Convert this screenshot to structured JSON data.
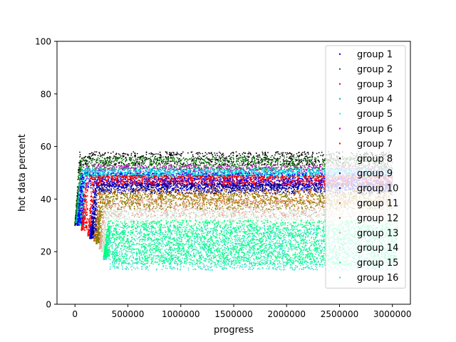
{
  "chart_data": {
    "type": "scatter",
    "title": "",
    "xlabel": "progress",
    "ylabel": "hot data percent",
    "xlim": [
      -170000,
      3170000
    ],
    "ylim": [
      0,
      100
    ],
    "xticks": [
      0,
      500000,
      1000000,
      1500000,
      2000000,
      2500000,
      3000000
    ],
    "xtick_labels": [
      "0",
      "500000",
      "1000000",
      "1500000",
      "2000000",
      "2500000",
      "3000000"
    ],
    "yticks": [
      0,
      20,
      40,
      60,
      80,
      100
    ],
    "ytick_labels": [
      "0",
      "20",
      "40",
      "60",
      "80",
      "100"
    ],
    "grid": false,
    "legend_position": "upper-right",
    "series": [
      {
        "name": "group 1",
        "color": "#0000ff",
        "x_start": 20000,
        "x_end": 3000000,
        "y_start": 30,
        "y_low": 44,
        "y_high": 50
      },
      {
        "name": "group 2",
        "color": "#008000",
        "x_start": 0,
        "x_end": 3000000,
        "y_start": 31,
        "y_low": 51,
        "y_high": 56
      },
      {
        "name": "group 3",
        "color": "#ff0000",
        "x_start": 60000,
        "x_end": 3000000,
        "y_start": 28,
        "y_low": 45,
        "y_high": 49
      },
      {
        "name": "group 4",
        "color": "#00bfbf",
        "x_start": 10000,
        "x_end": 3000000,
        "y_start": 31,
        "y_low": 48,
        "y_high": 52
      },
      {
        "name": "group 5",
        "color": "#00ffff",
        "x_start": 40000,
        "x_end": 3000000,
        "y_start": 30,
        "y_low": 48,
        "y_high": 51
      },
      {
        "name": "group 6",
        "color": "#bf00bf",
        "x_start": 30000,
        "x_end": 3000000,
        "y_start": 30,
        "y_low": 49,
        "y_high": 53
      },
      {
        "name": "group 7",
        "color": "#ff0000",
        "x_start": 120000,
        "x_end": 3000000,
        "y_start": 26,
        "y_low": 45,
        "y_high": 49
      },
      {
        "name": "group 8",
        "color": "#000000",
        "x_start": 0,
        "x_end": 3000000,
        "y_start": 30,
        "y_low": 53,
        "y_high": 58
      },
      {
        "name": "group 9",
        "color": "#0000ff",
        "x_start": 140000,
        "x_end": 3000000,
        "y_start": 25,
        "y_low": 43,
        "y_high": 48
      },
      {
        "name": "group 10",
        "color": "#000080",
        "x_start": 150000,
        "x_end": 3000000,
        "y_start": 25,
        "y_low": 42,
        "y_high": 46
      },
      {
        "name": "group 11",
        "color": "#cc6600",
        "x_start": 180000,
        "x_end": 3000000,
        "y_start": 24,
        "y_low": 38,
        "y_high": 44
      },
      {
        "name": "group 12",
        "color": "#808000",
        "x_start": 200000,
        "x_end": 3000000,
        "y_start": 23,
        "y_low": 36,
        "y_high": 42
      },
      {
        "name": "group 13",
        "color": "#e8a898",
        "x_start": 230000,
        "x_end": 3000000,
        "y_start": 21,
        "y_low": 33,
        "y_high": 40
      },
      {
        "name": "group 14",
        "color": "#cfe8d8",
        "x_start": 250000,
        "x_end": 3000000,
        "y_start": 20,
        "y_low": 30,
        "y_high": 36
      },
      {
        "name": "group 15",
        "color": "#00ff7f",
        "x_start": 270000,
        "x_end": 3050000,
        "y_start": 18,
        "y_low": 15,
        "y_high": 32
      },
      {
        "name": "group 16",
        "color": "#40e0d0",
        "x_start": 270000,
        "x_end": 3050000,
        "y_start": 17,
        "y_low": 13,
        "y_high": 30
      }
    ]
  }
}
